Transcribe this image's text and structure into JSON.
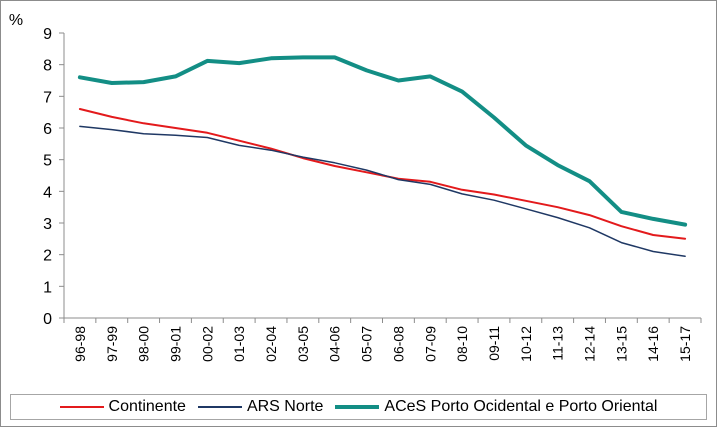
{
  "chart_data": {
    "type": "line",
    "ylabel": "%",
    "ylim": [
      0,
      9
    ],
    "yticks": [
      "0",
      "1",
      "2",
      "3",
      "4",
      "5",
      "6",
      "7",
      "8",
      "9"
    ],
    "categories": [
      "96-98",
      "97-99",
      "98-00",
      "99-01",
      "00-02",
      "01-03",
      "02-04",
      "03-05",
      "04-06",
      "05-07",
      "06-08",
      "07-09",
      "08-10",
      "09-11",
      "10-12",
      "11-13",
      "12-14",
      "13-15",
      "14-16",
      "15-17"
    ],
    "series": [
      {
        "name": "Continente",
        "color": "#e31a1c",
        "values": [
          6.6,
          6.35,
          6.15,
          6.0,
          5.85,
          5.6,
          5.35,
          5.05,
          4.8,
          4.6,
          4.4,
          4.3,
          4.05,
          3.9,
          3.7,
          3.5,
          3.25,
          2.9,
          2.62,
          2.5
        ]
      },
      {
        "name": "ARS Norte",
        "color": "#1f3864",
        "values": [
          6.05,
          5.95,
          5.82,
          5.77,
          5.7,
          5.45,
          5.3,
          5.08,
          4.9,
          4.67,
          4.37,
          4.22,
          3.92,
          3.72,
          3.45,
          3.17,
          2.85,
          2.38,
          2.1,
          1.95
        ]
      },
      {
        "name": "ACeS Porto Ocidental e Porto Oriental",
        "color": "#138e85",
        "values": [
          7.6,
          7.42,
          7.45,
          7.63,
          8.12,
          8.05,
          8.2,
          8.23,
          8.23,
          7.82,
          7.5,
          7.63,
          7.15,
          6.33,
          5.45,
          4.83,
          4.32,
          3.35,
          3.13,
          2.95
        ]
      }
    ],
    "grid": false,
    "legend_position": "bottom"
  }
}
